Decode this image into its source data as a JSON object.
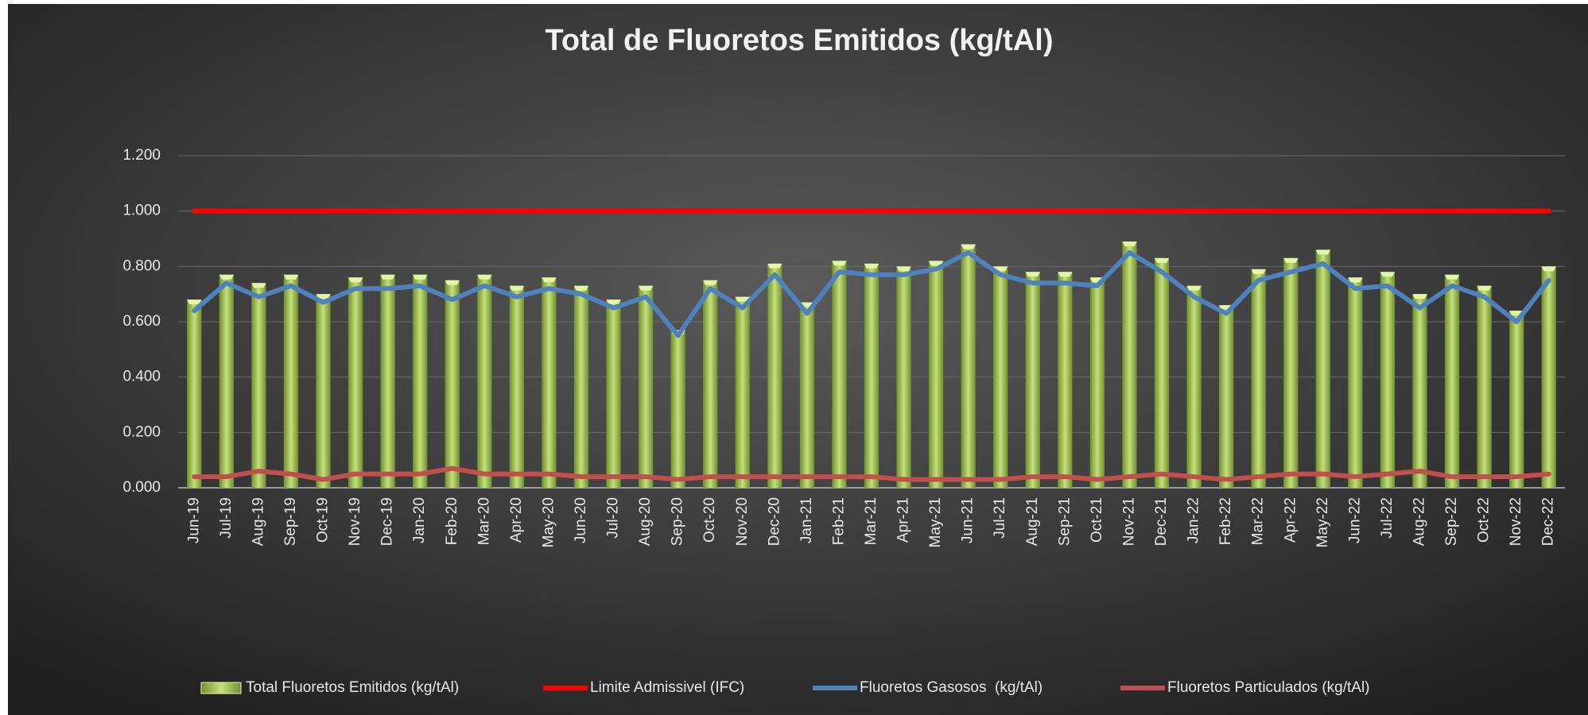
{
  "chart_data": {
    "type": "combo",
    "title": "Total de Fluoretos Emitidos (kg/tAl)",
    "categories": [
      "Jun-19",
      "Jul-19",
      "Aug-19",
      "Sep-19",
      "Oct-19",
      "Nov-19",
      "Dec-19",
      "Jan-20",
      "Feb-20",
      "Mar-20",
      "Apr-20",
      "May-20",
      "Jun-20",
      "Jul-20",
      "Aug-20",
      "Sep-20",
      "Oct-20",
      "Nov-20",
      "Dec-20",
      "Jan-21",
      "Feb-21",
      "Mar-21",
      "Apr-21",
      "May-21",
      "Jun-21",
      "Jul-21",
      "Aug-21",
      "Sep-21",
      "Oct-21",
      "Nov-21",
      "Dec-21",
      "Jan-22",
      "Feb-22",
      "Mar-22",
      "Apr-22",
      "May-22",
      "Jun-22",
      "Jul-22",
      "Aug-22",
      "Sep-22",
      "Oct-22",
      "Nov-22",
      "Dec-22"
    ],
    "series": [
      {
        "name": "Total Fluoretos Emitidos (kg/tAl)",
        "type": "bar",
        "color": "#9bbb59",
        "values": [
          0.68,
          0.77,
          0.74,
          0.77,
          0.7,
          0.76,
          0.77,
          0.77,
          0.75,
          0.77,
          0.73,
          0.76,
          0.73,
          0.68,
          0.73,
          0.57,
          0.75,
          0.69,
          0.81,
          0.67,
          0.82,
          0.81,
          0.8,
          0.82,
          0.88,
          0.8,
          0.78,
          0.78,
          0.76,
          0.89,
          0.83,
          0.73,
          0.66,
          0.79,
          0.83,
          0.86,
          0.76,
          0.78,
          0.7,
          0.77,
          0.73,
          0.64,
          0.8
        ]
      },
      {
        "name": "Limite Admissivel (IFC)",
        "type": "line",
        "color": "#ff0000",
        "values": [
          1,
          1,
          1,
          1,
          1,
          1,
          1,
          1,
          1,
          1,
          1,
          1,
          1,
          1,
          1,
          1,
          1,
          1,
          1,
          1,
          1,
          1,
          1,
          1,
          1,
          1,
          1,
          1,
          1,
          1,
          1,
          1,
          1,
          1,
          1,
          1,
          1,
          1,
          1,
          1,
          1,
          1,
          1
        ]
      },
      {
        "name": "Fluoretos Gasosos  (kg/tAl)",
        "type": "line",
        "color": "#4f81bd",
        "values": [
          0.64,
          0.74,
          0.69,
          0.73,
          0.67,
          0.72,
          0.72,
          0.73,
          0.68,
          0.73,
          0.69,
          0.72,
          0.7,
          0.65,
          0.69,
          0.55,
          0.72,
          0.65,
          0.77,
          0.63,
          0.78,
          0.77,
          0.77,
          0.79,
          0.85,
          0.77,
          0.74,
          0.74,
          0.73,
          0.85,
          0.78,
          0.69,
          0.63,
          0.75,
          0.78,
          0.81,
          0.72,
          0.73,
          0.65,
          0.73,
          0.69,
          0.6,
          0.75
        ]
      },
      {
        "name": "Fluoretos Particulados (kg/tAl)",
        "type": "line",
        "color": "#c0504d",
        "values": [
          0.04,
          0.04,
          0.06,
          0.05,
          0.03,
          0.05,
          0.05,
          0.05,
          0.07,
          0.05,
          0.05,
          0.05,
          0.04,
          0.04,
          0.04,
          0.03,
          0.04,
          0.04,
          0.04,
          0.04,
          0.04,
          0.04,
          0.03,
          0.03,
          0.03,
          0.03,
          0.04,
          0.04,
          0.03,
          0.04,
          0.05,
          0.04,
          0.03,
          0.04,
          0.05,
          0.05,
          0.04,
          0.05,
          0.06,
          0.04,
          0.04,
          0.04,
          0.05
        ]
      }
    ],
    "ylim": [
      0,
      1.2
    ],
    "yticks": [
      {
        "value": 0,
        "label": "0.000"
      },
      {
        "value": 0.2,
        "label": "0.200"
      },
      {
        "value": 0.4,
        "label": "0.400"
      },
      {
        "value": 0.6,
        "label": "0.600"
      },
      {
        "value": 0.8,
        "label": "0.800"
      },
      {
        "value": 1,
        "label": "1.000"
      },
      {
        "value": 1.2,
        "label": "1.200"
      }
    ],
    "grid": true,
    "legend": "bottom"
  }
}
